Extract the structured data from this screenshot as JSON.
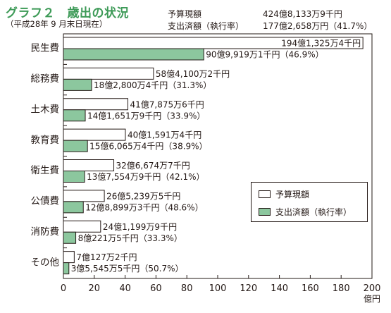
{
  "header": {
    "title": "グラフ２　歳出の状況",
    "subtitle": "（平成28年 9 月末日現在）"
  },
  "summary": [
    {
      "label": "予算現額",
      "value": "424億8,133万9千円"
    },
    {
      "label": "支出済額（執行率）",
      "value": "177億2,658万円（41.7%）"
    }
  ],
  "colors": {
    "budget_fill": "#ffffff",
    "expenditure_fill": "#8cc79e",
    "title": "#3d9a57",
    "outline": "#231815"
  },
  "chart_data": {
    "type": "bar",
    "orientation": "horizontal",
    "xlim": [
      0,
      200
    ],
    "x_ticks": [
      "0",
      "20",
      "40",
      "60",
      "80",
      "100",
      "120",
      "140",
      "160",
      "180",
      "200"
    ],
    "x_unit": "億円",
    "legend_position": "bottom-right",
    "categories": [
      "民生費",
      "総務費",
      "土木費",
      "教育費",
      "衛生費",
      "公債費",
      "消防費",
      "その他"
    ],
    "series": [
      {
        "name": "予算現額",
        "values": [
          194.1325,
          58.41,
          41.7875,
          40.1591,
          32.6674,
          26.5239,
          24.1199,
          7.0127
        ],
        "labels": [
          "194億1,325万4千円",
          "58億4,100万2千円",
          "41億7,875万6千円",
          "40億1,591万4千円",
          "32億6,674万7千円",
          "26億5,239万5千円",
          "24億1,199万9千円",
          "7億127万2千円"
        ]
      },
      {
        "name": "支出済額（執行率）",
        "values": [
          90.9919,
          18.28,
          14.1651,
          15.6065,
          13.7554,
          12.8899,
          8.0221,
          3.5545
        ],
        "labels": [
          "90億9,919万1千円（46.9%）",
          "18億2,800万4千円（31.3%）",
          "14億1,651万9千円（33.9%）",
          "15億6,065万4千円（38.9%）",
          "13億7,554万9千円（42.1%）",
          "12億8,899万3千円（48.6%）",
          "8億221万5千円（33.3%）",
          "3億5,545万5千円（50.7%）"
        ]
      }
    ]
  }
}
